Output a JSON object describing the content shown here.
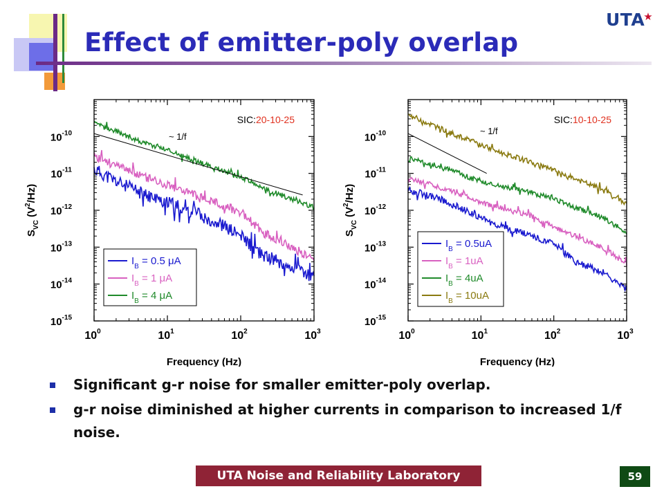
{
  "slide": {
    "title": "Effect of emitter-poly overlap",
    "logo": "UTA",
    "footer": "UTA Noise and Reliability Laboratory",
    "page_number": "59",
    "bullets": [
      "Significant g-r noise for smaller emitter-poly overlap.",
      "g-r noise diminished at higher currents in comparison to increased 1/f noise."
    ],
    "colors": {
      "title": "#2b2bb8",
      "footer_bg": "#8f2336",
      "page_bg": "#0f4a14",
      "bullet": "#1d2fa8"
    }
  },
  "chart_data": [
    {
      "type": "line",
      "xscale": "log",
      "yscale": "log",
      "xlabel": "Frequency (Hz)",
      "ylabel": "S_VC (V²/Hz)",
      "xlim": [
        1,
        1000
      ],
      "ylim": [
        1e-15,
        1e-09
      ],
      "x_ticks": [
        1,
        10,
        100,
        1000
      ],
      "x_tick_labels": [
        {
          "base": "10",
          "exp": "0"
        },
        {
          "base": "10",
          "exp": "1"
        },
        {
          "base": "10",
          "exp": "2"
        },
        {
          "base": "10",
          "exp": "3"
        }
      ],
      "y_ticks": [
        1e-15,
        1e-14,
        1e-13,
        1e-12,
        1e-11,
        1e-10
      ],
      "y_tick_labels": [
        {
          "base": "10",
          "exp": "-15"
        },
        {
          "base": "10",
          "exp": "-14"
        },
        {
          "base": "10",
          "exp": "-13"
        },
        {
          "base": "10",
          "exp": "-12"
        },
        {
          "base": "10",
          "exp": "-11"
        },
        {
          "base": "10",
          "exp": "-10"
        }
      ],
      "annotation": {
        "label": "SIC:",
        "value": "20-10-25",
        "value_color": "#e0301e"
      },
      "reference_line": {
        "label": "~ 1/f",
        "x": [
          1,
          700
        ],
        "y": [
          1.2e-10,
          2.6e-12
        ]
      },
      "legend": "bottom-left",
      "series": [
        {
          "name": "IB = 0.5 μA",
          "sub": "B",
          "prefix": "I",
          "rest": " = 0.5 μA",
          "color": "#1a1acf",
          "noise": 0.18,
          "seed": 11,
          "x": [
            1,
            2,
            5,
            10,
            20,
            50,
            100,
            200,
            500,
            1000
          ],
          "y": [
            1.3e-11,
            6e-12,
            2.6e-12,
            1.6e-12,
            1e-12,
            4.5e-13,
            2e-13,
            6e-14,
            3e-14,
            1.5e-14
          ]
        },
        {
          "name": "IB = 1 μA",
          "sub": "B",
          "prefix": "I",
          "rest": " = 1 μA",
          "color": "#d860c0",
          "noise": 0.12,
          "seed": 23,
          "x": [
            1,
            2,
            5,
            10,
            20,
            50,
            100,
            200,
            500,
            1000
          ],
          "y": [
            3e-11,
            1.6e-11,
            8e-12,
            5e-12,
            3e-12,
            1.5e-12,
            9e-13,
            2.5e-13,
            1e-13,
            4.5e-14
          ]
        },
        {
          "name": "IB = 4 μA",
          "sub": "B",
          "prefix": "I",
          "rest": " = 4 μA",
          "color": "#1f8a2a",
          "noise": 0.07,
          "seed": 37,
          "x": [
            1,
            2,
            5,
            10,
            20,
            50,
            100,
            200,
            500,
            1000
          ],
          "y": [
            2.2e-10,
            1.4e-10,
            6.5e-11,
            4.5e-11,
            2.5e-11,
            1.3e-11,
            8e-12,
            4e-12,
            2e-12,
            1.2e-12
          ]
        }
      ]
    },
    {
      "type": "line",
      "xscale": "log",
      "yscale": "log",
      "xlabel": "Frequency (Hz)",
      "ylabel": "S_VC (V²/Hz)",
      "xlim": [
        1,
        1000
      ],
      "ylim": [
        1e-15,
        1e-09
      ],
      "x_ticks": [
        1,
        10,
        100,
        1000
      ],
      "x_tick_labels": [
        {
          "base": "10",
          "exp": "0"
        },
        {
          "base": "10",
          "exp": "1"
        },
        {
          "base": "10",
          "exp": "2"
        },
        {
          "base": "10",
          "exp": "3"
        }
      ],
      "y_ticks": [
        1e-15,
        1e-14,
        1e-13,
        1e-12,
        1e-11,
        1e-10
      ],
      "y_tick_labels": [
        {
          "base": "10",
          "exp": "-15"
        },
        {
          "base": "10",
          "exp": "-14"
        },
        {
          "base": "10",
          "exp": "-13"
        },
        {
          "base": "10",
          "exp": "-12"
        },
        {
          "base": "10",
          "exp": "-11"
        },
        {
          "base": "10",
          "exp": "-10"
        }
      ],
      "annotation": {
        "label": "SIC:",
        "value": "10-10-25",
        "value_color": "#e0301e"
      },
      "reference_line": {
        "label": "~ 1/f",
        "x": [
          1,
          12
        ],
        "y": [
          1.2e-10,
          1e-11
        ]
      },
      "legend": "bottom-left",
      "series": [
        {
          "name": "IB = 0.5uA",
          "sub": "B",
          "prefix": "I",
          "rest": " = 0.5uA",
          "color": "#1a1acf",
          "noise": 0.09,
          "seed": 53,
          "x": [
            1,
            2,
            5,
            10,
            20,
            50,
            100,
            200,
            500,
            1000
          ],
          "y": [
            3.5e-12,
            2.5e-12,
            1.2e-12,
            6e-13,
            3.5e-13,
            2e-13,
            1.2e-13,
            4e-14,
            2e-14,
            7e-15
          ]
        },
        {
          "name": "IB = 1uA",
          "sub": "B",
          "prefix": "I",
          "rest": " = 1uA",
          "color": "#d860c0",
          "noise": 0.07,
          "seed": 61,
          "x": [
            1,
            2,
            5,
            10,
            20,
            50,
            100,
            200,
            500,
            1000
          ],
          "y": [
            7e-12,
            5e-12,
            2.8e-12,
            1.6e-12,
            1.1e-12,
            7e-13,
            3.5e-13,
            2e-13,
            9e-14,
            3.5e-14
          ]
        },
        {
          "name": "IB = 4uA",
          "sub": "B",
          "prefix": "I",
          "rest": " = 4uA",
          "color": "#1f8a2a",
          "noise": 0.07,
          "seed": 71,
          "x": [
            1,
            2,
            5,
            10,
            20,
            50,
            100,
            200,
            500,
            1000
          ],
          "y": [
            2.5e-11,
            1.8e-11,
            1e-11,
            6e-12,
            4.5e-12,
            3e-12,
            2e-12,
            1.2e-12,
            6e-13,
            2.5e-13
          ]
        },
        {
          "name": "IB = 10uA",
          "sub": "B",
          "prefix": "I",
          "rest": " = 10uA",
          "color": "#8a7a10",
          "noise": 0.07,
          "seed": 83,
          "x": [
            1,
            2,
            5,
            10,
            20,
            50,
            100,
            200,
            500,
            1000
          ],
          "y": [
            4e-10,
            2.2e-10,
            1e-10,
            6e-11,
            3.5e-11,
            2e-11,
            1.2e-11,
            7e-12,
            3.5e-12,
            1.5e-12
          ]
        }
      ]
    }
  ]
}
